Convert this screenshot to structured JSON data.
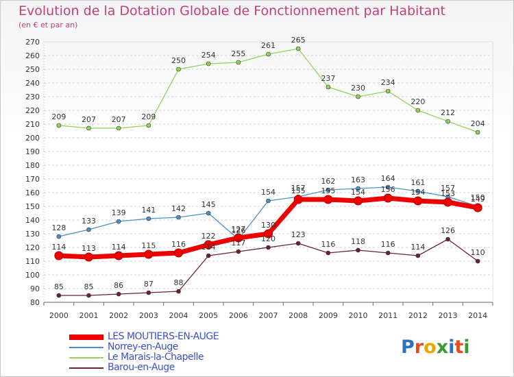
{
  "title": "Evolution de la Dotation Globale de Fonctionnement par Habitant",
  "subtitle": "(en € et par an)",
  "logo_text": "Proxiti",
  "chart_data": {
    "type": "line",
    "title": "Evolution de la Dotation Globale de Fonctionnement par Habitant",
    "subtitle": "(en € et par an)",
    "x": [
      2000,
      2001,
      2002,
      2003,
      2004,
      2005,
      2006,
      2007,
      2008,
      2009,
      2010,
      2011,
      2012,
      2013,
      2014
    ],
    "ylim": [
      80,
      270
    ],
    "yticks": [
      80,
      90,
      100,
      110,
      120,
      130,
      140,
      150,
      160,
      170,
      180,
      190,
      200,
      210,
      220,
      230,
      240,
      250,
      260,
      270
    ],
    "grid": "horizontal dashed",
    "legend_position": "bottom-left",
    "series": [
      {
        "name": "LES MOUTIERS-EN-AUGE",
        "color": "#ee0000",
        "values": [
          114,
          113,
          114,
          115,
          116,
          122,
          127,
          130,
          155,
          155,
          154,
          156,
          154,
          153,
          149
        ],
        "labels": [
          "114",
          "113",
          "114",
          "115",
          "116",
          "122",
          "127",
          "130",
          "155",
          "155",
          "154",
          "156",
          "154",
          "153",
          "149"
        ]
      },
      {
        "name": "Norrey-en-Auge",
        "color": "#4b8fc9",
        "values": [
          128,
          133,
          139,
          141,
          142,
          145,
          126,
          154,
          157,
          162,
          163,
          164,
          161,
          157,
          150
        ],
        "labels": [
          "128",
          "133",
          "139",
          "141",
          "142",
          "145",
          "126",
          "154",
          "157",
          "162",
          "163",
          "164",
          "161",
          "157",
          "150"
        ]
      },
      {
        "name": "Le Marais-la-Chapelle",
        "color": "#8fd35a",
        "values": [
          209,
          207,
          207,
          209,
          250,
          254,
          255,
          261,
          265,
          237,
          230,
          234,
          220,
          212,
          204
        ],
        "labels": [
          "209",
          "207",
          "207",
          "209",
          "250",
          "254",
          "255",
          "261",
          "265",
          "237",
          "230",
          "234",
          "220",
          "212",
          "204"
        ]
      },
      {
        "name": "Barou-en-Auge",
        "color": "#6b2228",
        "values": [
          85,
          85,
          86,
          87,
          88,
          114,
          117,
          120,
          123,
          116,
          118,
          116,
          114,
          126,
          110
        ],
        "labels": [
          "85",
          "85",
          "86",
          "87",
          "88",
          "114",
          "117",
          "120",
          "123",
          "116",
          "118",
          "116",
          "114",
          "126",
          "110"
        ]
      }
    ]
  }
}
